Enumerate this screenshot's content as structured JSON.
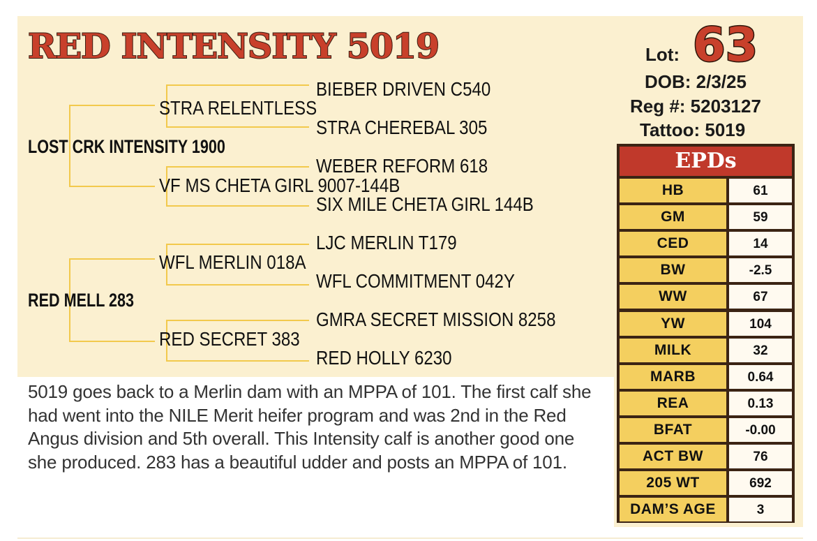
{
  "title": "RED INTENSITY 5019",
  "lot": {
    "label": "Lot:",
    "number": "63"
  },
  "dob": "DOB: 2/3/25",
  "reg": "Reg #:  5203127",
  "tattoo": "Tattoo:  5019",
  "pedigree": {
    "sire": "LOST CRK INTENSITY 1900",
    "sire_sire": "STRA RELENTLESS",
    "sire_sire_sire": "BIEBER DRIVEN C540",
    "sire_sire_dam": "STRA CHEREBAL 305",
    "sire_dam": "VF MS CHETA GIRL 9007-144B",
    "sire_dam_sire": "WEBER REFORM 618",
    "sire_dam_dam": "SIX MILE CHETA GIRL 144B",
    "dam": "RED MELL 283",
    "dam_sire": "WFL MERLIN 018A",
    "dam_sire_sire": "LJC MERLIN T179",
    "dam_sire_dam": "WFL COMMITMENT 042Y",
    "dam_dam": "RED SECRET 383",
    "dam_dam_sire": "GMRA SECRET MISSION 8258",
    "dam_dam_dam": "RED HOLLY 6230"
  },
  "epds": {
    "header": "EPDs",
    "rows": [
      {
        "name": "HB",
        "value": "61"
      },
      {
        "name": "GM",
        "value": "59"
      },
      {
        "name": "CED",
        "value": "14"
      },
      {
        "name": "BW",
        "value": "-2.5"
      },
      {
        "name": "WW",
        "value": "67"
      },
      {
        "name": "YW",
        "value": "104"
      },
      {
        "name": "MILK",
        "value": "32"
      },
      {
        "name": "MARB",
        "value": "0.64"
      },
      {
        "name": "REA",
        "value": "0.13"
      },
      {
        "name": "BFAT",
        "value": "-0.00"
      },
      {
        "name": "ACT BW",
        "value": "76"
      },
      {
        "name": "205 WT",
        "value": "692"
      },
      {
        "name": "DAM’S AGE",
        "value": "3"
      }
    ]
  },
  "description": "5019 goes back to a Merlin dam with an MPPA of 101. The first calf she had went into the NILE Merit heifer program and was 2nd in the Red Angus division and 5th overall. This Intensity calf is another good one she produced. 283 has a beautiful udder and posts an MPPA of 101."
}
